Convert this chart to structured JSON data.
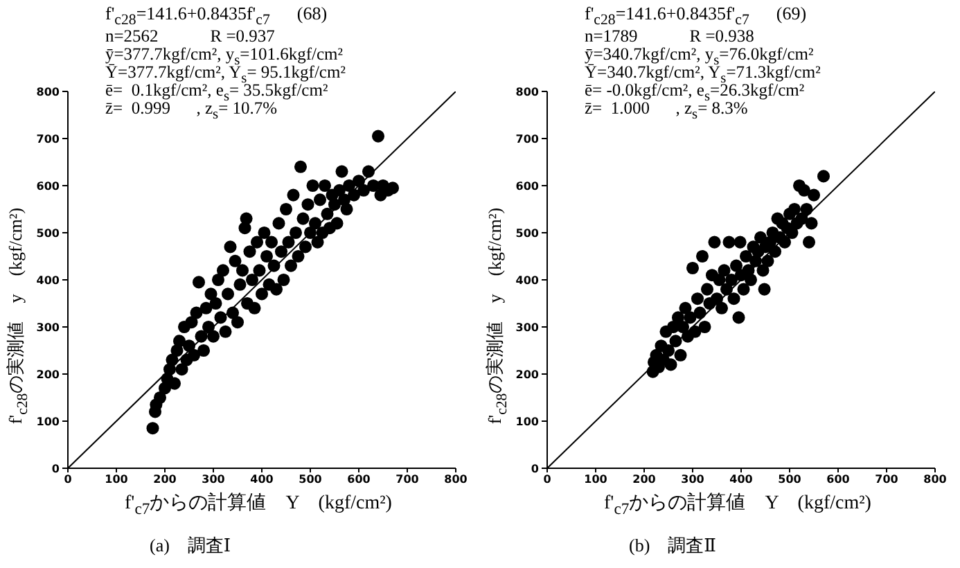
{
  "chart_data": [
    {
      "type": "scatter",
      "title": "f'$_{c28}$=141.6+0.8435f'$_{c7}$      (68)",
      "subtitle": "(a)　調査Ⅰ",
      "xlabel": "f'$_{c7}$からの計算値　Y　(kgf/cm²)",
      "ylabel": "f'$_{c28}$の実測値　y　(kgf/cm²)",
      "annotations": [
        "n=2562            R =0.937",
        "ȳ=377.7kgf/cm², y$_{s}$=101.6kgf/cm²",
        "Ȳ=377.7kgf/cm², Y$_{s}$= 95.1kgf/cm²",
        "ē=  0.1kgf/cm², e$_{s}$= 35.5kgf/cm²",
        "z̄=  0.999      , z$_{s}$= 10.7%"
      ],
      "xlim": [
        0,
        800
      ],
      "ylim": [
        0,
        800
      ],
      "xticks": [
        0,
        100,
        200,
        300,
        400,
        500,
        600,
        700,
        800
      ],
      "yticks": [
        0,
        100,
        200,
        300,
        400,
        500,
        600,
        700,
        800
      ],
      "series": [
        {
          "color": "#000000",
          "x": [
            175,
            180,
            182,
            190,
            200,
            205,
            210,
            215,
            220,
            225,
            230,
            235,
            240,
            245,
            250,
            255,
            260,
            265,
            270,
            275,
            280,
            285,
            290,
            295,
            300,
            305,
            310,
            315,
            320,
            325,
            330,
            335,
            340,
            345,
            350,
            355,
            360,
            365,
            368,
            370,
            375,
            380,
            385,
            390,
            395,
            400,
            405,
            410,
            415,
            420,
            425,
            430,
            435,
            440,
            445,
            450,
            455,
            460,
            465,
            470,
            475,
            480,
            485,
            490,
            495,
            500,
            505,
            510,
            515,
            520,
            525,
            530,
            535,
            540,
            545,
            550,
            555,
            560,
            565,
            570,
            575,
            580,
            590,
            600,
            610,
            620,
            630,
            640,
            645,
            650,
            660,
            670
          ],
          "values": [
            85,
            120,
            135,
            150,
            170,
            190,
            210,
            230,
            180,
            250,
            270,
            210,
            300,
            230,
            260,
            310,
            240,
            330,
            395,
            280,
            250,
            340,
            300,
            370,
            280,
            350,
            400,
            320,
            420,
            290,
            370,
            470,
            330,
            440,
            310,
            390,
            420,
            510,
            530,
            350,
            460,
            400,
            340,
            480,
            420,
            370,
            500,
            450,
            390,
            480,
            430,
            380,
            520,
            460,
            400,
            550,
            480,
            430,
            580,
            500,
            450,
            640,
            530,
            470,
            560,
            500,
            600,
            520,
            480,
            570,
            500,
            600,
            540,
            510,
            580,
            560,
            520,
            590,
            630,
            570,
            550,
            600,
            580,
            610,
            590,
            630,
            600,
            705,
            580,
            600,
            590,
            595
          ]
        },
        {
          "type": "line",
          "color": "#000000",
          "x": [
            0,
            800
          ],
          "values": [
            0,
            800
          ]
        }
      ]
    },
    {
      "type": "scatter",
      "title": "f'$_{c28}$=141.6+0.8435f'$_{c7}$      (69)",
      "subtitle": "(b)　調査Ⅱ",
      "xlabel": "f'$_{c7}$からの計算値　Y　(kgf/cm²)",
      "ylabel": "f'$_{c28}$の実測値　y　(kgf/cm²)",
      "annotations": [
        "n=1789            R =0.938",
        "ȳ=340.7kgf/cm², y$_{s}$=76.0kgf/cm²",
        "Ȳ=340.7kgf/cm², Y$_{s}$=71.3kgf/cm²",
        "ē= -0.0kgf/cm², e$_{s}$=26.3kgf/cm²",
        "z̄=  1.000      , z$_{s}$= 8.3%"
      ],
      "xlim": [
        0,
        800
      ],
      "ylim": [
        0,
        800
      ],
      "xticks": [
        0,
        100,
        200,
        300,
        400,
        500,
        600,
        700,
        800
      ],
      "yticks": [
        0,
        100,
        200,
        300,
        400,
        500,
        600,
        700,
        800
      ],
      "series": [
        {
          "color": "#000000",
          "x": [
            218,
            220,
            225,
            230,
            235,
            240,
            245,
            250,
            255,
            260,
            265,
            270,
            275,
            280,
            285,
            290,
            295,
            300,
            305,
            310,
            315,
            320,
            325,
            330,
            335,
            340,
            345,
            350,
            355,
            360,
            365,
            370,
            375,
            380,
            385,
            390,
            395,
            398,
            400,
            405,
            410,
            415,
            420,
            425,
            430,
            435,
            440,
            445,
            448,
            450,
            455,
            460,
            465,
            470,
            475,
            480,
            485,
            490,
            495,
            500,
            505,
            510,
            515,
            520,
            525,
            530,
            535,
            540,
            545,
            550,
            570
          ],
          "values": [
            205,
            225,
            240,
            215,
            260,
            230,
            290,
            250,
            220,
            300,
            270,
            320,
            240,
            300,
            340,
            280,
            320,
            425,
            290,
            360,
            330,
            450,
            300,
            380,
            350,
            410,
            480,
            360,
            400,
            340,
            420,
            380,
            480,
            400,
            360,
            430,
            320,
            480,
            410,
            380,
            450,
            420,
            400,
            470,
            440,
            460,
            490,
            420,
            380,
            470,
            440,
            480,
            500,
            460,
            530,
            490,
            520,
            480,
            510,
            540,
            500,
            550,
            520,
            600,
            530,
            590,
            550,
            480,
            520,
            580,
            620
          ]
        },
        {
          "type": "line",
          "color": "#000000",
          "x": [
            0,
            800
          ],
          "values": [
            0,
            800
          ]
        }
      ]
    }
  ]
}
